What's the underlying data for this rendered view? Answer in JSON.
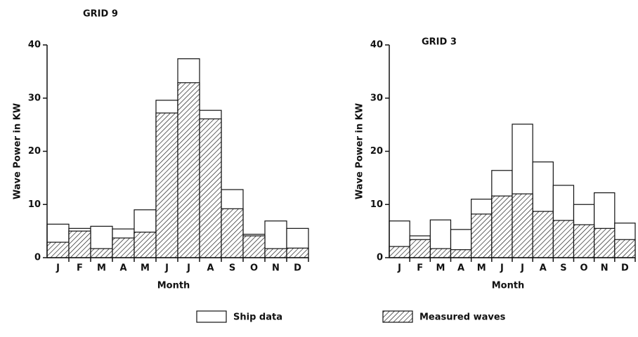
{
  "chart_data": [
    {
      "type": "bar",
      "title": "GRID 9",
      "x_label": "Month",
      "y_label": "Wave Power in KW",
      "categories": [
        "J",
        "F",
        "M",
        "A",
        "M",
        "J",
        "J",
        "A",
        "S",
        "O",
        "N",
        "D"
      ],
      "series": [
        {
          "name": "Ship data",
          "color": "#ffffff",
          "hatch": false,
          "values": [
            6.3,
            5.5,
            5.9,
            5.4,
            9.0,
            29.6,
            37.4,
            27.7,
            12.8,
            4.4,
            6.9,
            5.5
          ]
        },
        {
          "name": "Measured waves",
          "color": "#000000",
          "hatch": true,
          "values": [
            2.9,
            5.0,
            1.7,
            3.7,
            4.8,
            27.2,
            32.9,
            26.1,
            9.2,
            4.1,
            1.7,
            1.8
          ]
        }
      ],
      "ylim": [
        0,
        40
      ],
      "yticks": [
        0,
        10,
        20,
        30,
        40
      ]
    },
    {
      "type": "bar",
      "title": "GRID 3",
      "x_label": "Month",
      "y_label": "Wave Power in KW",
      "categories": [
        "J",
        "F",
        "M",
        "A",
        "M",
        "J",
        "J",
        "A",
        "S",
        "O",
        "N",
        "D"
      ],
      "series": [
        {
          "name": "Ship data",
          "color": "#ffffff",
          "hatch": false,
          "values": [
            6.9,
            4.1,
            7.1,
            5.3,
            11.0,
            16.4,
            25.1,
            18.0,
            13.6,
            10.0,
            12.2,
            6.5
          ]
        },
        {
          "name": "Measured waves",
          "color": "#000000",
          "hatch": true,
          "values": [
            2.1,
            3.4,
            1.7,
            1.5,
            8.2,
            11.6,
            12.0,
            8.7,
            7.0,
            6.2,
            5.5,
            3.4
          ]
        }
      ],
      "ylim": [
        0,
        40
      ],
      "yticks": [
        0,
        10,
        20,
        30,
        40
      ]
    }
  ]
}
